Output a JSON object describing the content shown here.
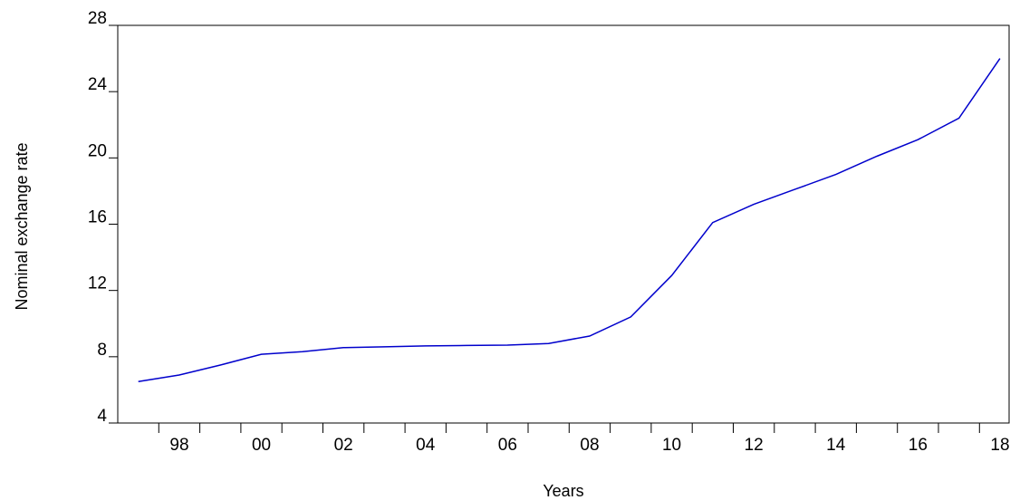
{
  "chart_data": {
    "type": "line",
    "y_label": "Nominal exchange rate",
    "x_label": "Years",
    "categories": [
      null,
      "98",
      null,
      "00",
      null,
      "02",
      null,
      "04",
      null,
      "06",
      null,
      "08",
      null,
      "10",
      null,
      "12",
      null,
      "14",
      null,
      "16",
      null,
      "18"
    ],
    "series": [
      {
        "name": "Nominal exchange rate",
        "color": "#0000cc",
        "values": [
          6.5,
          6.9,
          7.5,
          8.15,
          8.3,
          8.55,
          8.6,
          8.65,
          8.68,
          8.7,
          8.8,
          9.25,
          10.4,
          12.9,
          16.1,
          17.2,
          18.1,
          19.0,
          20.1,
          21.1,
          22.4,
          26.0
        ]
      }
    ],
    "ylim": [
      4,
      28
    ],
    "yticks": [
      4,
      8,
      12,
      16,
      20,
      24,
      28
    ]
  }
}
